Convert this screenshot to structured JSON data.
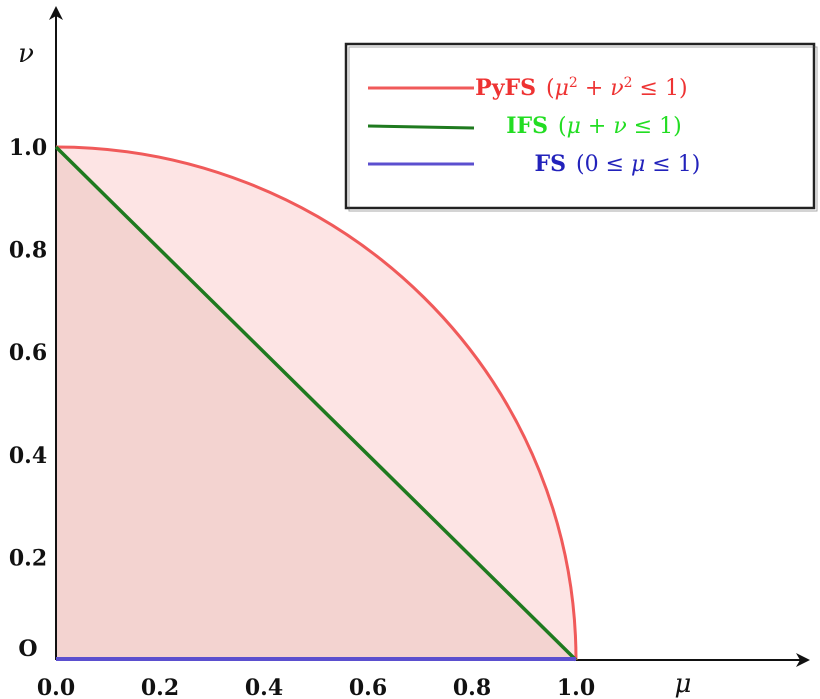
{
  "chart_data": {
    "type": "area",
    "x": {
      "label": "μ",
      "range": [
        0,
        1.0
      ],
      "ticks": [
        "0.0",
        "0.2",
        "0.4",
        "0.6",
        "0.8",
        "1.0"
      ]
    },
    "y": {
      "label": "ν",
      "range": [
        0,
        1.0
      ],
      "ticks": [
        "0.2",
        "0.4",
        "0.6",
        "0.8",
        "1.0"
      ]
    },
    "origin_label": "O",
    "series": [
      {
        "name": "PyFS",
        "condition": [
          "(",
          "μ",
          "2",
          " + ",
          "ν",
          "2",
          " ≤ 1)"
        ],
        "shape": "quarter-circle",
        "x": [
          0,
          0.2,
          0.4,
          0.6,
          0.8,
          1.0
        ],
        "y": [
          1.0,
          0.98,
          0.917,
          0.8,
          0.6,
          0.0
        ],
        "color": "#f05a5a",
        "fill": "#fde4e4",
        "label_color": "#ee3333"
      },
      {
        "name": "IFS",
        "condition": [
          "(",
          "μ",
          " + ",
          "ν",
          " ≤ 1)"
        ],
        "shape": "line",
        "x": [
          0.0,
          1.0
        ],
        "y": [
          1.0,
          0.0
        ],
        "color": "#1f7a1f",
        "fill": "#f3d3d0",
        "label_color": "#22dd22"
      },
      {
        "name": "FS",
        "condition": [
          "(0 ≤ ",
          "μ",
          " ≤ 1)"
        ],
        "shape": "segment",
        "x": [
          0.0,
          1.0
        ],
        "y": [
          0.0,
          0.0
        ],
        "color": "#5b4fcf",
        "label_color": "#2222bb"
      }
    ],
    "legend_position": "top-right",
    "grid": false
  }
}
